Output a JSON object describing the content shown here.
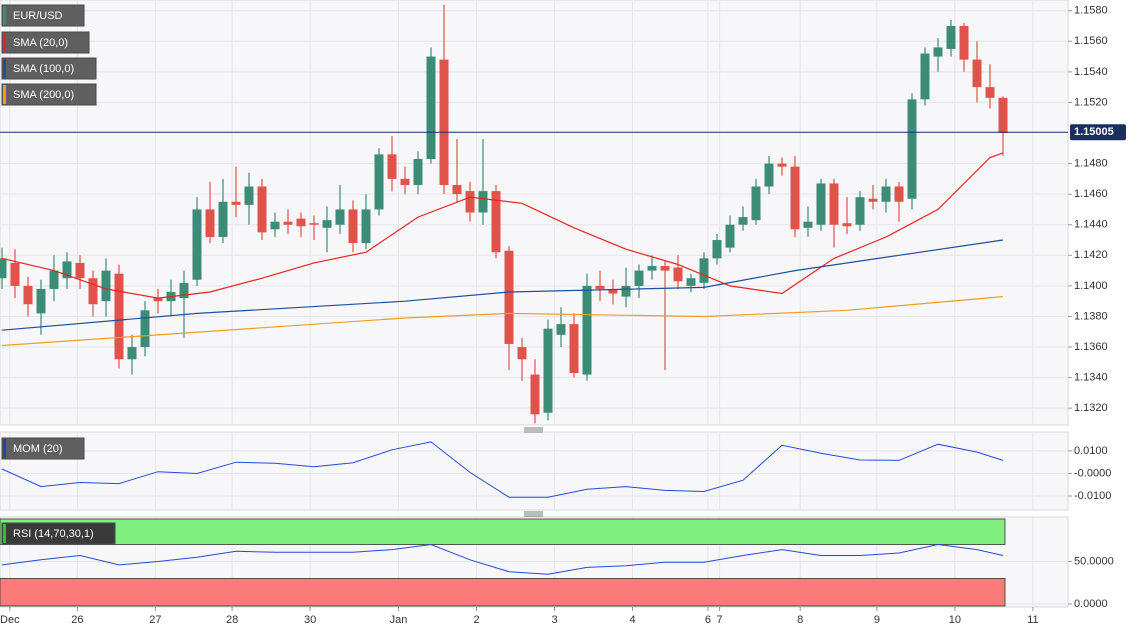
{
  "chart_data": [
    {
      "type": "candlestick",
      "name": "EUR/USD",
      "color": "#3d8c78",
      "up_color": "#3d8c78",
      "down_color": "#e0534a",
      "open": [
        1.1405,
        1.1415,
        1.14,
        1.1382,
        1.1398,
        1.1405,
        1.1415,
        1.1405,
        1.139,
        1.1408,
        1.1352,
        1.136,
        1.1392,
        1.139,
        1.1392,
        1.1404,
        1.145,
        1.1432,
        1.1455,
        1.1453,
        1.1465,
        1.1437,
        1.1442,
        1.1444,
        1.1441,
        1.1438,
        1.144,
        1.145,
        1.1428,
        1.145,
        1.1486,
        1.147,
        1.1466,
        1.1483,
        1.1548,
        1.1466,
        1.1462,
        1.1448,
        1.1462,
        1.1423,
        1.136,
        1.1342,
        1.1317,
        1.1368,
        1.1375,
        1.1342,
        1.14,
        1.1398,
        1.1393,
        1.14,
        1.141,
        1.1413,
        1.1412,
        1.14,
        1.1402,
        1.1418,
        1.1425,
        1.144,
        1.1443,
        1.1465,
        1.148,
        1.1478,
        1.1438,
        1.144,
        1.1467,
        1.1441,
        1.144,
        1.1457,
        1.1455,
        1.1465,
        1.1457,
        1.1522,
        1.155,
        1.1555,
        1.157,
        1.1548,
        1.153,
        1.1523
      ],
      "high": [
        1.1425,
        1.1424,
        1.1406,
        1.1404,
        1.142,
        1.1422,
        1.142,
        1.141,
        1.1418,
        1.1414,
        1.1368,
        1.139,
        1.1398,
        1.1404,
        1.141,
        1.1458,
        1.1468,
        1.147,
        1.1478,
        1.1474,
        1.147,
        1.1448,
        1.145,
        1.1448,
        1.1446,
        1.1452,
        1.1466,
        1.1456,
        1.146,
        1.149,
        1.1498,
        1.1478,
        1.1488,
        1.1556,
        1.1584,
        1.1496,
        1.1468,
        1.1496,
        1.1466,
        1.1426,
        1.1366,
        1.1352,
        1.1378,
        1.1386,
        1.1382,
        1.1408,
        1.141,
        1.1404,
        1.1412,
        1.1414,
        1.142,
        1.1416,
        1.142,
        1.1408,
        1.1422,
        1.1434,
        1.1446,
        1.1452,
        1.147,
        1.1485,
        1.1484,
        1.1485,
        1.1452,
        1.147,
        1.147,
        1.1458,
        1.1462,
        1.1466,
        1.147,
        1.1468,
        1.1526,
        1.1556,
        1.1562,
        1.1574,
        1.1572,
        1.156,
        1.1545,
        1.1524
      ],
      "low": [
        1.1398,
        1.1392,
        1.138,
        1.1368,
        1.139,
        1.1398,
        1.1398,
        1.138,
        1.138,
        1.1346,
        1.1342,
        1.1354,
        1.1382,
        1.138,
        1.1366,
        1.14,
        1.1428,
        1.1428,
        1.1445,
        1.144,
        1.143,
        1.1432,
        1.1434,
        1.1432,
        1.143,
        1.1422,
        1.1434,
        1.1422,
        1.1424,
        1.1446,
        1.1462,
        1.146,
        1.146,
        1.148,
        1.146,
        1.1455,
        1.1442,
        1.144,
        1.1418,
        1.1345,
        1.1338,
        1.131,
        1.1312,
        1.136,
        1.134,
        1.1338,
        1.139,
        1.1388,
        1.1386,
        1.1392,
        1.1404,
        1.1345,
        1.1398,
        1.1396,
        1.1398,
        1.1414,
        1.1422,
        1.1436,
        1.144,
        1.146,
        1.1472,
        1.1432,
        1.1432,
        1.1436,
        1.1425,
        1.1434,
        1.1436,
        1.145,
        1.1448,
        1.1442,
        1.145,
        1.1518,
        1.154,
        1.155,
        1.154,
        1.152,
        1.1516,
        1.1485
      ],
      "close": [
        1.1418,
        1.14,
        1.1388,
        1.1398,
        1.141,
        1.1416,
        1.1405,
        1.1388,
        1.141,
        1.1352,
        1.136,
        1.1384,
        1.139,
        1.1396,
        1.1402,
        1.145,
        1.1432,
        1.1455,
        1.1453,
        1.1465,
        1.1435,
        1.1442,
        1.144,
        1.1439,
        1.144,
        1.1443,
        1.145,
        1.1428,
        1.145,
        1.1486,
        1.147,
        1.1466,
        1.1483,
        1.155,
        1.1466,
        1.146,
        1.1448,
        1.1462,
        1.1422,
        1.1362,
        1.1352,
        1.1316,
        1.1372,
        1.1375,
        1.1343,
        1.14,
        1.1398,
        1.1395,
        1.14,
        1.141,
        1.1413,
        1.141,
        1.1403,
        1.1405,
        1.1418,
        1.143,
        1.144,
        1.1445,
        1.1465,
        1.148,
        1.1478,
        1.1437,
        1.1442,
        1.1467,
        1.144,
        1.1439,
        1.1458,
        1.1455,
        1.1465,
        1.1455,
        1.1522,
        1.1552,
        1.1556,
        1.157,
        1.1548,
        1.153,
        1.1523,
        1.15
      ],
      "lines": [
        {
          "name": "SMA (20,0)",
          "color": "#e8231f",
          "x": [
            0,
            4,
            8,
            12,
            16,
            20,
            24,
            28,
            32,
            36,
            40,
            44,
            48,
            52,
            56,
            60,
            64,
            68,
            72,
            76,
            77
          ],
          "values": [
            1.1418,
            1.141,
            1.1398,
            1.1392,
            1.1396,
            1.1405,
            1.1415,
            1.1422,
            1.1445,
            1.1458,
            1.1454,
            1.1438,
            1.1424,
            1.1414,
            1.14,
            1.1395,
            1.1418,
            1.1432,
            1.145,
            1.1484,
            1.1487
          ]
        },
        {
          "name": "SMA (100,0)",
          "color": "#1f4e9c",
          "x": [
            0,
            15,
            31,
            39,
            54,
            61,
            69,
            77
          ],
          "values": [
            1.1371,
            1.1382,
            1.139,
            1.1396,
            1.1399,
            1.141,
            1.142,
            1.143
          ]
        },
        {
          "name": "SMA (200,0)",
          "color": "#f39c1f",
          "x": [
            0,
            31,
            39,
            54,
            65,
            77
          ],
          "values": [
            1.1361,
            1.1379,
            1.1382,
            1.138,
            1.1384,
            1.1393
          ]
        }
      ],
      "last_price": 1.15005,
      "last_price_color": "#1b2f5e",
      "xlim": [
        -0.154,
        82
      ],
      "xticks": [
        {
          "value": 0.6,
          "label": "Dec"
        },
        {
          "value": 5.8,
          "label": "26"
        },
        {
          "value": 11.8,
          "label": "27"
        },
        {
          "value": 17.7,
          "label": "28"
        },
        {
          "value": 23.7,
          "label": "30"
        },
        {
          "value": 30.5,
          "label": "Jan"
        },
        {
          "value": 36.5,
          "label": "2"
        },
        {
          "value": 42.5,
          "label": "3"
        },
        {
          "value": 48.5,
          "label": "4"
        },
        {
          "value": 54.3,
          "label": "6"
        },
        {
          "value": 55.2,
          "label": "7"
        },
        {
          "value": 61.4,
          "label": "8"
        },
        {
          "value": 67.3,
          "label": "9"
        },
        {
          "value": 73.3,
          "label": "10"
        },
        {
          "value": 79.3,
          "label": "11"
        }
      ],
      "ylim": [
        1.1309,
        1.1587
      ],
      "yticks": [
        {
          "value": 1.158,
          "label": "1.1580"
        },
        {
          "value": 1.156,
          "label": "1.1560"
        },
        {
          "value": 1.154,
          "label": "1.1540"
        },
        {
          "value": 1.152,
          "label": "1.1520"
        },
        {
          "value": 1.148,
          "label": "1.1480"
        },
        {
          "value": 1.146,
          "label": "1.1460"
        },
        {
          "value": 1.144,
          "label": "1.1440"
        },
        {
          "value": 1.142,
          "label": "1.1420"
        },
        {
          "value": 1.14,
          "label": "1.1400"
        },
        {
          "value": 1.138,
          "label": "1.1380"
        },
        {
          "value": 1.136,
          "label": "1.1360"
        },
        {
          "value": 1.134,
          "label": "1.1340"
        },
        {
          "value": 1.132,
          "label": "1.1320"
        }
      ],
      "grid": true
    },
    {
      "type": "line",
      "name": "MOM (20)",
      "color": "#2848d8",
      "legend_color": "#1f3fbf",
      "x": [
        0,
        3,
        6,
        9,
        12,
        15,
        18,
        21,
        24,
        27,
        30,
        33,
        36,
        39,
        42,
        45,
        48,
        51,
        54,
        57,
        60,
        63,
        66,
        69,
        72,
        75,
        77
      ],
      "values": [
        0.002,
        -0.0058,
        -0.004,
        -0.0045,
        0.0008,
        0.0,
        0.005,
        0.0045,
        0.003,
        0.0048,
        0.0105,
        0.014,
        0.0005,
        -0.0105,
        -0.0105,
        -0.007,
        -0.0058,
        -0.0075,
        -0.008,
        -0.003,
        0.0125,
        0.009,
        0.006,
        0.0058,
        0.013,
        0.0095,
        0.0058
      ],
      "ylim": [
        -0.0162,
        0.0184
      ],
      "yticks": [
        {
          "value": 0.01,
          "label": "0.0100"
        },
        {
          "value": 0,
          "label": "-0.0000"
        },
        {
          "value": -0.01,
          "label": "-0.0100"
        }
      ],
      "grid": true
    },
    {
      "type": "line",
      "name": "RSI (14,70,30,1)",
      "color": "#2848d8",
      "legend_color": "#2fbf2f",
      "x": [
        0,
        3,
        6,
        9,
        12,
        15,
        18,
        21,
        24,
        27,
        30,
        33,
        36,
        39,
        42,
        45,
        48,
        51,
        54,
        57,
        60,
        63,
        66,
        69,
        72,
        75,
        77
      ],
      "values": [
        46,
        52,
        57,
        46,
        50,
        55,
        62,
        61,
        61,
        61,
        64,
        70,
        52,
        38,
        35,
        43,
        45,
        49,
        49,
        57,
        64,
        57,
        57,
        60,
        70,
        64,
        57
      ],
      "overbought": 70,
      "oversold": 30,
      "overbought_color": "#7ff07f",
      "oversold_color": "#fb7b7b",
      "ylim": [
        -3.6,
        102.4
      ],
      "yticks": [
        {
          "value": 50,
          "label": "50.0000"
        },
        {
          "value": 0,
          "label": "0.0000"
        }
      ],
      "grid": true
    }
  ]
}
